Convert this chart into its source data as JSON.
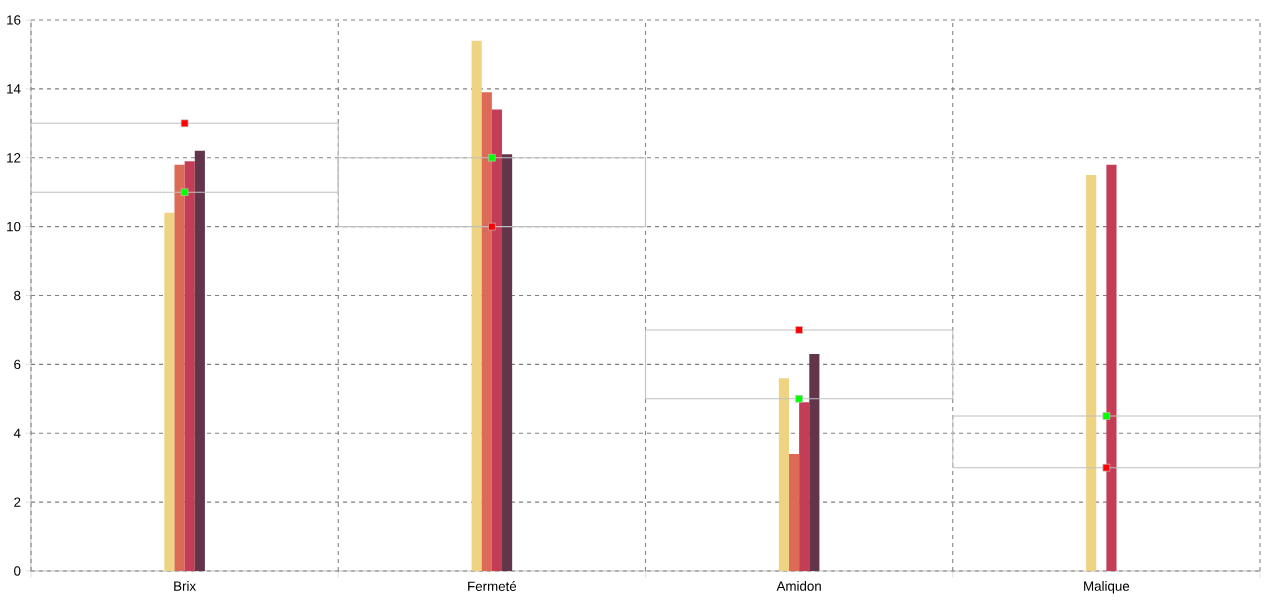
{
  "chart_data": {
    "type": "bar",
    "categories": [
      "Brix",
      "Fermeté",
      "Amidon",
      "Malique"
    ],
    "series": [
      {
        "color": "#edd382",
        "values": [
          10.4,
          15.4,
          5.6,
          11.5
        ]
      },
      {
        "color": "#dc6a56",
        "values": [
          11.8,
          13.9,
          3.4,
          0
        ]
      },
      {
        "color": "#c43d56",
        "values": [
          11.9,
          13.4,
          4.9,
          11.8
        ]
      },
      {
        "color": "#62354b",
        "values": [
          12.2,
          12.1,
          6.3,
          0
        ]
      },
      {
        "type": "bar",
        "color": "#c0c0c0",
        "base": [
          11,
          10,
          5,
          3
        ],
        "values": [
          2,
          2,
          2,
          1.5
        ]
      },
      {
        "type": "scatter",
        "marker": "square",
        "color": "#00ff00",
        "x": [
          "Brix",
          "Fermeté",
          "Amidon",
          "Malique"
        ],
        "values": [
          11,
          12,
          5,
          4.5
        ]
      },
      {
        "type": "scatter",
        "marker": "square",
        "color": "#ff0000",
        "x": [
          "Brix",
          "Fermeté",
          "Amidon",
          "Malique"
        ],
        "values": [
          13,
          10,
          7,
          3
        ]
      }
    ],
    "ylim": [
      0,
      16
    ],
    "yticks": [
      0,
      2,
      4,
      6,
      8,
      10,
      12,
      14,
      16
    ],
    "grid": true
  }
}
